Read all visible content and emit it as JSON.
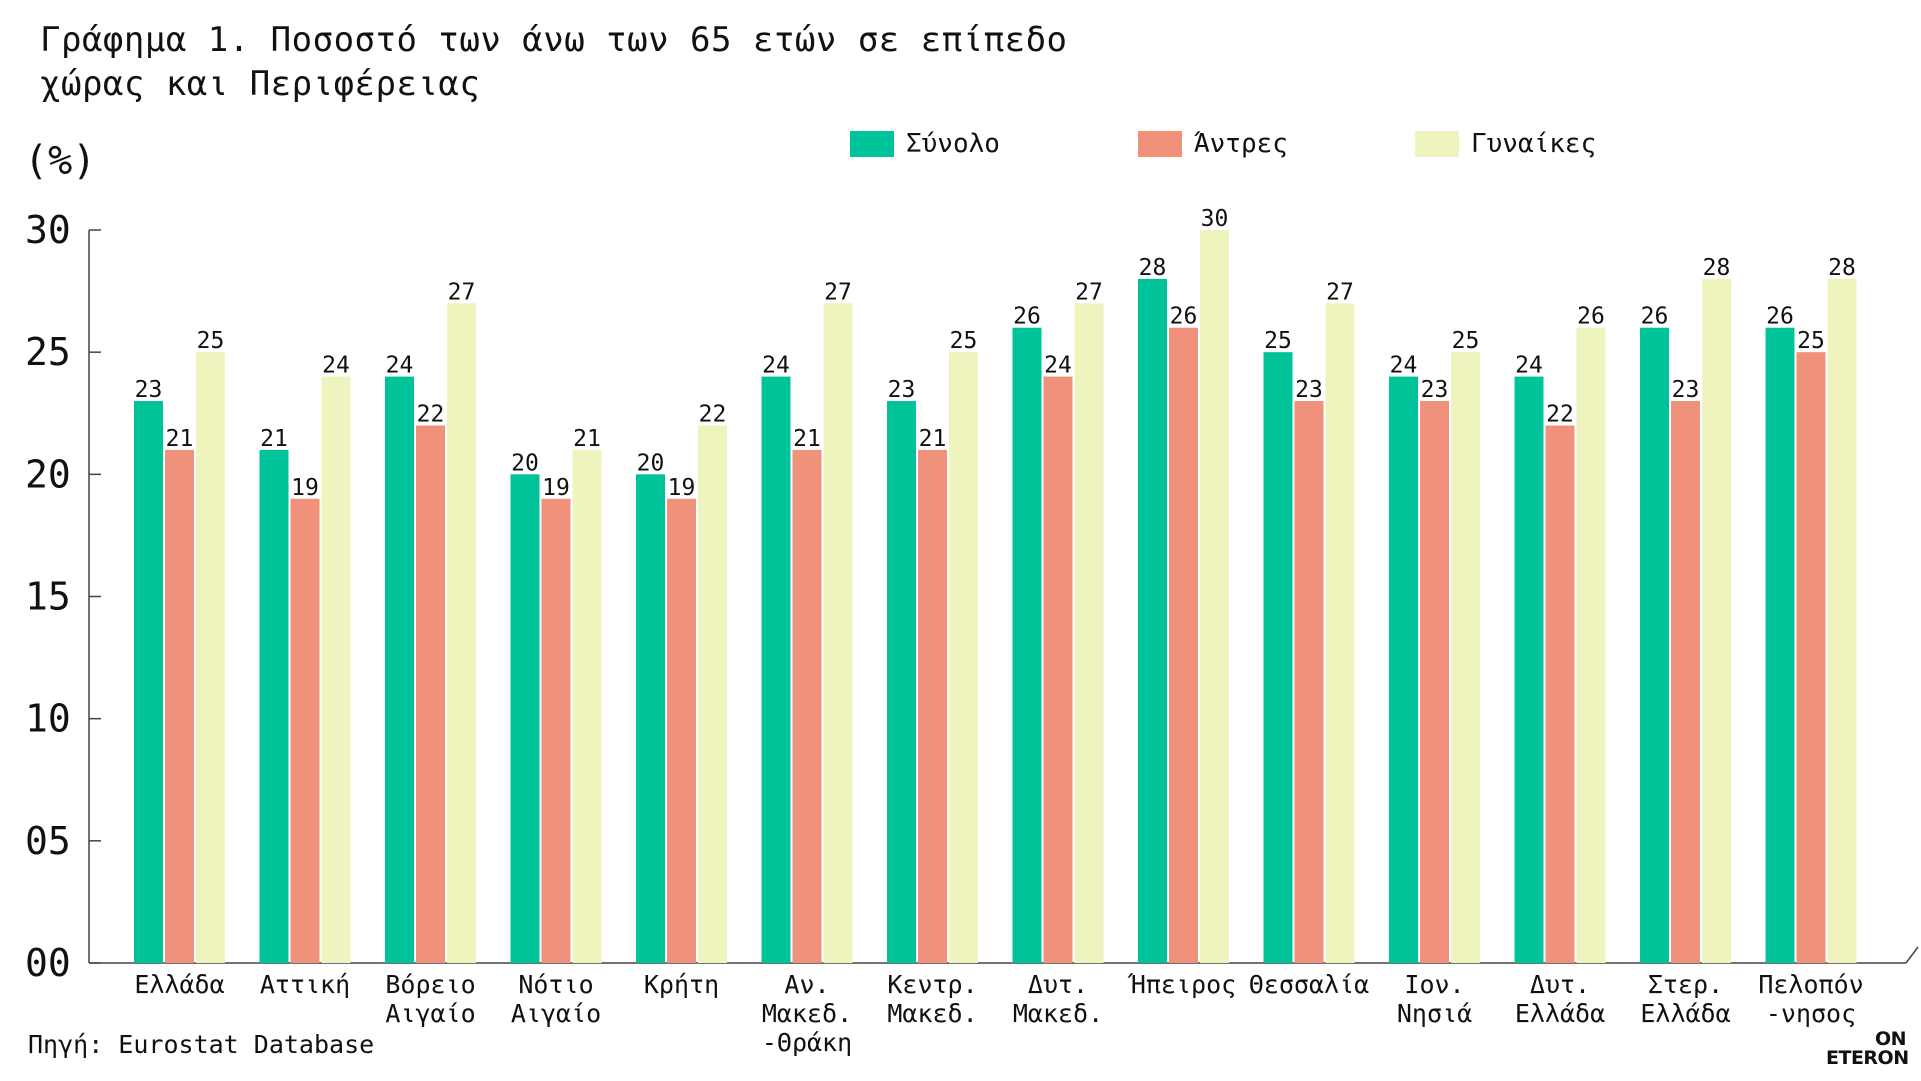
{
  "title_lines": [
    "Γράφημα 1. Ποσοστό των άνω των 65 ετών σε επίπεδο",
    "χώρας και Περιφέρειας"
  ],
  "unit_label": "(%)",
  "source": "Πηγή: Eurostat Database",
  "logo": {
    "line1": "ON",
    "line2": "ETERON"
  },
  "legend": [
    {
      "name": "Σύνολο",
      "color": "#00c39a"
    },
    {
      "name": "Άντρες",
      "color": "#ef917b"
    },
    {
      "name": "Γυναίκες",
      "color": "#eff4bf"
    }
  ],
  "chart_data": {
    "type": "bar",
    "title": "Γράφημα 1. Ποσοστό των άνω των 65 ετών σε επίπεδο χώρας και Περιφέρειας",
    "ylabel": "(%)",
    "xlabel": "",
    "ylim": [
      0,
      30
    ],
    "yticks": [
      0,
      5,
      10,
      15,
      20,
      25,
      30
    ],
    "ytick_labels": [
      "00",
      "05",
      "10",
      "15",
      "20",
      "25",
      "30"
    ],
    "grid": false,
    "legend_position": "top",
    "categories": [
      [
        "Ελλάδα"
      ],
      [
        "Αττική"
      ],
      [
        "Βόρειο",
        "Αιγαίο"
      ],
      [
        "Νότιο",
        "Αιγαίο"
      ],
      [
        "Κρήτη"
      ],
      [
        "Αν.",
        "Μακεδ.",
        "-Θράκη"
      ],
      [
        "Κεντρ.",
        "Μακεδ."
      ],
      [
        "Δυτ.",
        "Μακεδ."
      ],
      [
        "Ήπειρος"
      ],
      [
        "Θεσσαλία"
      ],
      [
        "Ιον.",
        "Νησιά"
      ],
      [
        "Δυτ.",
        "Ελλάδα"
      ],
      [
        "Στερ.",
        "Ελλάδα"
      ],
      [
        "Πελοπόν",
        "-νησος"
      ]
    ],
    "series": [
      {
        "name": "Σύνολο",
        "color": "#00c39a",
        "values": [
          23,
          21,
          24,
          20,
          20,
          24,
          23,
          26,
          28,
          25,
          24,
          24,
          26,
          26
        ]
      },
      {
        "name": "Άντρες",
        "color": "#ef917b",
        "values": [
          21,
          19,
          22,
          19,
          19,
          21,
          21,
          24,
          26,
          23,
          23,
          22,
          23,
          25
        ]
      },
      {
        "name": "Γυναίκες",
        "color": "#eff4bf",
        "values": [
          25,
          24,
          27,
          21,
          22,
          27,
          25,
          27,
          30,
          27,
          25,
          26,
          28,
          28
        ]
      }
    ]
  }
}
